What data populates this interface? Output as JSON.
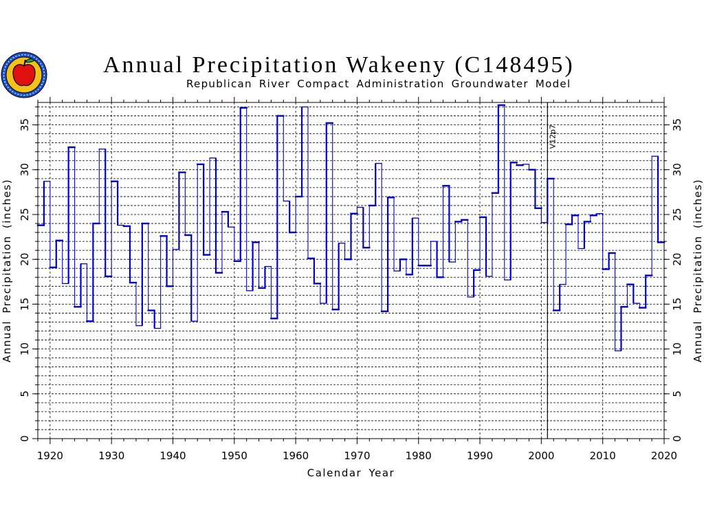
{
  "header": {
    "title": "Annual Precipitation Wakeeny (C148495)",
    "subtitle": "Republican River Compact Administration Groundwater Model"
  },
  "colors": {
    "series": "#0000cc",
    "grid": "#000000",
    "logo_ring": "#1a4fd0",
    "logo_fill": "#f2c21a",
    "apple": "#e01010"
  },
  "chart_data": {
    "type": "line",
    "step": true,
    "title": "Annual Precipitation Wakeeny (C148495)",
    "subtitle": "Republican River Compact Administration Groundwater Model",
    "xlabel": "Calendar Year",
    "ylabel": "Annual Precipitation (inches)",
    "xlim": [
      1918,
      2020
    ],
    "ylim": [
      0,
      37.5
    ],
    "xticks": [
      1920,
      1930,
      1940,
      1950,
      1960,
      1970,
      1980,
      1990,
      2000,
      2010,
      2020
    ],
    "yticks": [
      0,
      5,
      10,
      15,
      20,
      25,
      30,
      35
    ],
    "grid": true,
    "reference_line": {
      "x": 2001,
      "label": "V12p7"
    },
    "series": [
      {
        "x": [
          1918,
          1919,
          1920,
          1921,
          1922,
          1923,
          1924,
          1925,
          1926,
          1927,
          1928,
          1929,
          1930,
          1931,
          1932,
          1933,
          1934,
          1935,
          1936,
          1937,
          1938,
          1939,
          1940,
          1941,
          1942,
          1943,
          1944,
          1945,
          1946,
          1947,
          1948,
          1949,
          1950,
          1951,
          1952,
          1953,
          1954,
          1955,
          1956,
          1957,
          1958,
          1959,
          1960,
          1961,
          1962,
          1963,
          1964,
          1965,
          1966,
          1967,
          1968,
          1969,
          1970,
          1971,
          1972,
          1973,
          1974,
          1975,
          1976,
          1977,
          1978,
          1979,
          1980,
          1981,
          1982,
          1983,
          1984,
          1985,
          1986,
          1987,
          1988,
          1989,
          1990,
          1991,
          1992,
          1993,
          1994,
          1995,
          1996,
          1997,
          1998,
          1999,
          2000,
          2001,
          2002,
          2003,
          2004,
          2005,
          2006,
          2007,
          2008,
          2009,
          2010,
          2011,
          2012,
          2013,
          2014,
          2015,
          2016,
          2017,
          2018,
          2019
        ],
        "values": [
          23.8,
          28.7,
          19.1,
          22.1,
          17.3,
          32.5,
          14.7,
          19.5,
          13.1,
          24.0,
          32.3,
          18.1,
          28.7,
          23.8,
          23.7,
          17.4,
          12.6,
          24.0,
          14.3,
          12.3,
          22.6,
          17.0,
          21.1,
          29.7,
          22.7,
          13.1,
          30.6,
          20.5,
          31.3,
          18.5,
          25.3,
          23.6,
          19.8,
          36.9,
          16.5,
          21.9,
          16.8,
          19.2,
          13.4,
          36.0,
          26.5,
          23.0,
          27.0,
          37.0,
          20.1,
          17.3,
          15.1,
          35.2,
          14.4,
          21.8,
          20.0,
          25.1,
          25.8,
          21.3,
          26.0,
          30.7,
          14.2,
          26.9,
          18.7,
          20.0,
          18.3,
          24.6,
          19.3,
          19.3,
          22.0,
          18.0,
          28.2,
          19.7,
          24.2,
          24.4,
          15.8,
          18.8,
          24.7,
          18.1,
          27.4,
          37.2,
          17.7,
          30.8,
          30.5,
          30.6,
          30.0,
          25.7,
          24.1,
          29.0,
          14.3,
          17.2,
          23.9,
          24.9,
          21.2,
          24.2,
          24.9,
          25.1,
          18.9,
          20.7,
          9.8,
          14.7,
          17.2,
          15.1,
          14.6,
          18.2,
          31.5,
          21.9
        ]
      }
    ]
  }
}
